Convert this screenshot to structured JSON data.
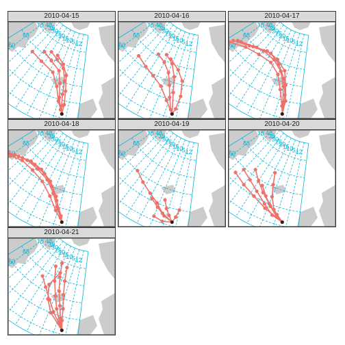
{
  "colors": {
    "graticule": "#00b5d8",
    "track": "#f0706a",
    "land": "#cccccc",
    "strip": "#d9d9d9",
    "border": "#333333"
  },
  "graticule_labels": {
    "meridians": [
      "40",
      "35",
      "30",
      "25",
      "20",
      "15",
      "10",
      "5",
      "12"
    ],
    "parallels": [
      "75",
      "70",
      "65",
      "60",
      "55",
      "51"
    ]
  },
  "source_marker": "volcano-source-icon",
  "panels": [
    {
      "date": "2010-04-15",
      "tracks": "arc-north"
    },
    {
      "date": "2010-04-16",
      "tracks": "arc-north-split"
    },
    {
      "date": "2010-04-17",
      "tracks": "arc-west"
    },
    {
      "date": "2010-04-18",
      "tracks": "arc-west-long"
    },
    {
      "date": "2010-04-19",
      "tracks": "local-south"
    },
    {
      "date": "2010-04-20",
      "tracks": "fan-southwest"
    },
    {
      "date": "2010-04-21",
      "tracks": "north-straight"
    }
  ]
}
